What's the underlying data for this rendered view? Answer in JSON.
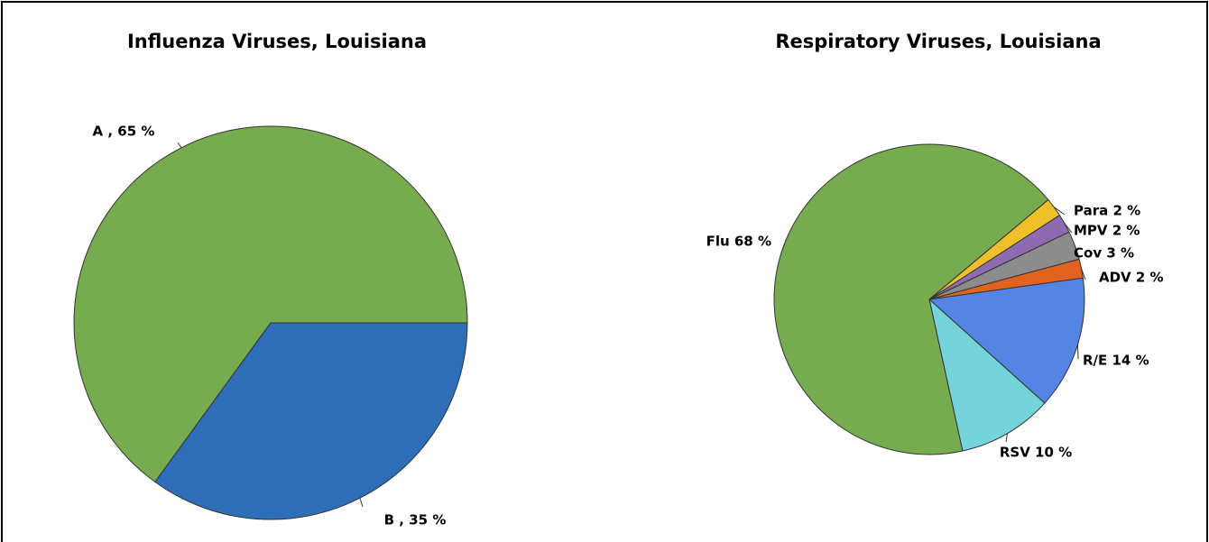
{
  "chart_data": [
    {
      "type": "pie",
      "title": "Influenza Viruses, Louisiana",
      "values": [
        65,
        35
      ],
      "value_labels": [
        "A , 65 %",
        "B , 35 %"
      ],
      "colors": [
        "#77ab4f",
        "#2e6eb9"
      ]
    },
    {
      "type": "pie",
      "title": "Respiratory Viruses, Louisiana",
      "values": [
        2,
        2,
        3,
        2,
        14,
        10,
        68
      ],
      "value_labels": [
        "Para 2 %",
        "MPV 2 %",
        "Cov 3 %",
        "ADV 2 %",
        "R/E 14 %",
        "RSV 10 %",
        "Flu 68 %"
      ],
      "colors": [
        "#f0c02a",
        "#8d6bb0",
        "#8c8c8c",
        "#e2621f",
        "#5585e3",
        "#74d4da",
        "#77ab4f"
      ]
    }
  ]
}
